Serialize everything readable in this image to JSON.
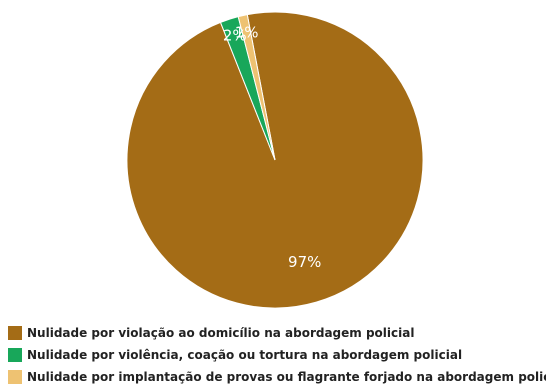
{
  "chart_data": {
    "type": "pie",
    "title": "",
    "slices": [
      {
        "label": "Nulidade por violação ao domicílio na abordagem policial",
        "value": 97,
        "display": "97%",
        "color": "#A46C16"
      },
      {
        "label": "Nulidade por violência, coação ou tortura na abordagem policial",
        "value": 2,
        "display": "2%",
        "color": "#18A75A"
      },
      {
        "label": "Nulidade por implantação de provas ou flagrante forjado na abordagem policial",
        "value": 1,
        "display": "1%",
        "color": "#EEC272"
      }
    ],
    "legend_position": "bottom-left"
  }
}
